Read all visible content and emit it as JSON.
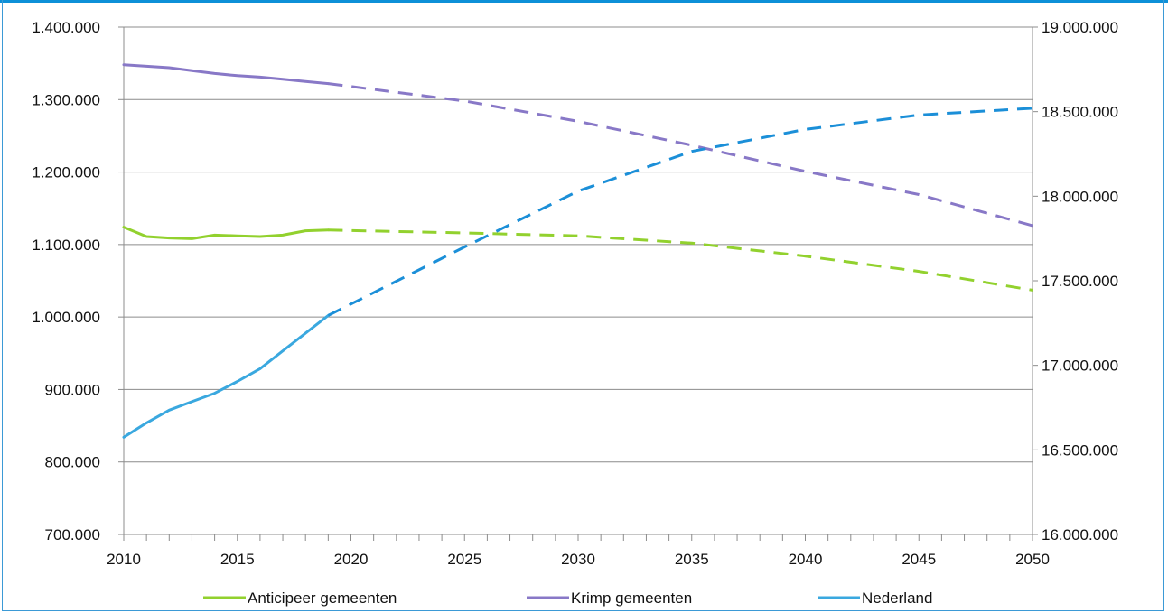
{
  "chart_data": {
    "type": "line",
    "x_ticks": [
      "2010",
      "2015",
      "2020",
      "2025",
      "2030",
      "2035",
      "2040",
      "2045",
      "2050"
    ],
    "xlim": [
      2010,
      2050
    ],
    "left_axis": {
      "ylim": [
        700000,
        1400000
      ],
      "ticks": [
        "700.000",
        "800.000",
        "900.000",
        "1.000.000",
        "1.100.000",
        "1.200.000",
        "1.300.000",
        "1.400.000"
      ]
    },
    "right_axis": {
      "ylim": [
        16000000,
        19000000
      ],
      "ticks": [
        "16.000.000",
        "16.500.000",
        "17.000.000",
        "17.500.000",
        "18.000.000",
        "18.500.000",
        "19.000.000"
      ]
    },
    "grid": true,
    "legend_position": "bottom",
    "series": [
      {
        "name": "Anticipeer gemeenten",
        "color": "#92d12e",
        "axis": "left",
        "solid_x": [
          2010,
          2011,
          2012,
          2013,
          2014,
          2015,
          2016,
          2017,
          2018,
          2019
        ],
        "solid_y": [
          1124000,
          1111000,
          1109000,
          1108000,
          1113000,
          1112000,
          1111000,
          1113000,
          1119000,
          1120000
        ],
        "dashed_x": [
          2019,
          2025,
          2030,
          2035,
          2040,
          2045,
          2050
        ],
        "dashed_y": [
          1120000,
          1116000,
          1112000,
          1102000,
          1084000,
          1063000,
          1037000
        ]
      },
      {
        "name": "Krimp gemeenten",
        "color": "#8878c7",
        "axis": "left",
        "solid_x": [
          2010,
          2011,
          2012,
          2013,
          2014,
          2015,
          2016,
          2017,
          2018,
          2019
        ],
        "solid_y": [
          1348000,
          1346000,
          1344000,
          1340000,
          1336000,
          1333000,
          1331000,
          1328000,
          1325000,
          1322000
        ],
        "dashed_x": [
          2019,
          2025,
          2030,
          2035,
          2040,
          2045,
          2050
        ],
        "dashed_y": [
          1322000,
          1298000,
          1270000,
          1237000,
          1201000,
          1169000,
          1126000
        ]
      },
      {
        "name": "Nederland",
        "color": "#3aa8df",
        "dashed_color": "#1b8fd8",
        "axis": "right",
        "solid_x": [
          2010,
          2011,
          2012,
          2013,
          2014,
          2015,
          2016,
          2017,
          2018,
          2019
        ],
        "solid_y": [
          16575000,
          16660000,
          16735000,
          16785000,
          16835000,
          16905000,
          16980000,
          17085000,
          17190000,
          17295000
        ],
        "dashed_x": [
          2019,
          2025,
          2030,
          2035,
          2040,
          2045,
          2050
        ],
        "dashed_y": [
          17295000,
          17700000,
          18030000,
          18265000,
          18395000,
          18480000,
          18520000
        ]
      }
    ]
  }
}
